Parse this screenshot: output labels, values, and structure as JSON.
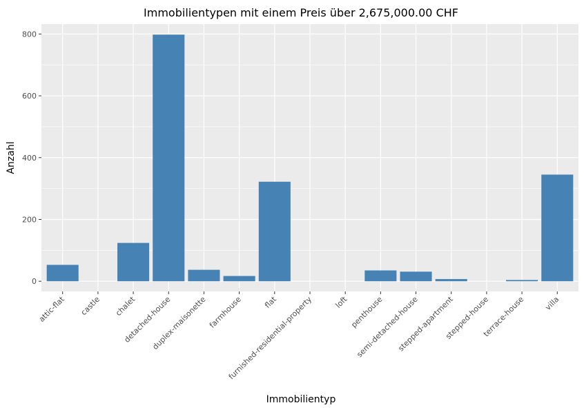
{
  "chart_data": {
    "type": "bar",
    "title": "Immobilientypen mit einem Preis über 2,675,000.00 CHF",
    "xlabel": "Immobilientyp",
    "ylabel": "Anzahl",
    "categories": [
      "attic-flat",
      "castle",
      "chalet",
      "detached-house",
      "duplex-maisonette",
      "farmhouse",
      "flat",
      "furnished-residential-property",
      "loft",
      "penthouse",
      "semi-detached-house",
      "stepped-apartment",
      "stepped-house",
      "terrace-house",
      "villa"
    ],
    "values": [
      53,
      0,
      124,
      798,
      37,
      17,
      322,
      0,
      0,
      35,
      31,
      7,
      0,
      4,
      345
    ],
    "ylim": [
      -33,
      832
    ],
    "yticks": [
      0,
      200,
      400,
      600,
      800
    ],
    "grid": true,
    "colors": {
      "bar": "#4682b4",
      "panel": "#ebebeb",
      "grid": "#ffffff"
    }
  }
}
